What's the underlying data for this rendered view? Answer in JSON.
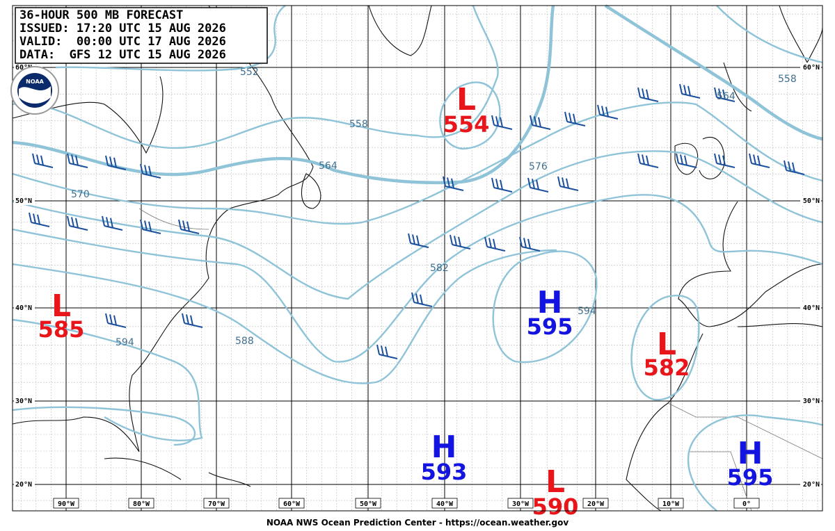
{
  "header": {
    "lines": [
      "36-HOUR 500 MB FORECAST",
      "ISSUED: 17:20 UTC 15 AUG 2026",
      "VALID:  00:00 UTC 17 AUG 2026",
      "DATA:  GFS 12 UTC 15 AUG 2026"
    ]
  },
  "logo": "NOAA",
  "latitudes": [
    "60°N",
    "50°N",
    "40°N",
    "30°N",
    "20°N"
  ],
  "longitudes": [
    "90°W",
    "80°W",
    "70°W",
    "60°W",
    "50°W",
    "40°W",
    "30°W",
    "20°W",
    "10°W",
    "0°"
  ],
  "contour_labels": [
    552,
    558,
    564,
    570,
    576,
    582,
    588,
    594,
    594,
    564,
    558
  ],
  "centers": [
    {
      "type": "L",
      "value": 554
    },
    {
      "type": "L",
      "value": 585
    },
    {
      "type": "H",
      "value": 595
    },
    {
      "type": "L",
      "value": 582
    },
    {
      "type": "H",
      "value": 593
    },
    {
      "type": "L",
      "value": 590
    },
    {
      "type": "H",
      "value": 595
    }
  ],
  "footer": "NOAA NWS Ocean Prediction Center - https://ocean.weather.gov"
}
